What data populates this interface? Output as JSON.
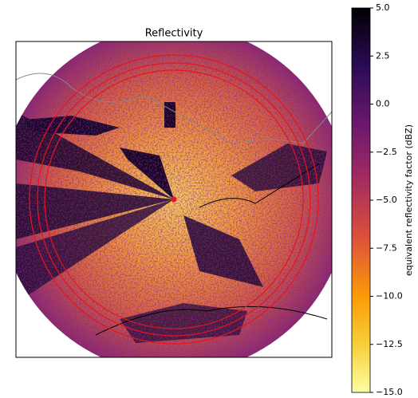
{
  "chart_data": {
    "type": "radar-image",
    "title": "Reflectivity",
    "colorbar_label": "equivalent reflectivity factor (dBZ)",
    "clim": [
      -15,
      5
    ],
    "cticks": [
      {
        "value": 5,
        "label": "5.0"
      },
      {
        "value": 2.5,
        "label": "2.5"
      },
      {
        "value": 0,
        "label": "0.0"
      },
      {
        "value": -2.5,
        "label": "−2.5"
      },
      {
        "value": -5,
        "label": "−5.0"
      },
      {
        "value": -7.5,
        "label": "−7.5"
      },
      {
        "value": -10,
        "label": "−10.0"
      },
      {
        "value": -12.5,
        "label": "−12.5"
      },
      {
        "value": -15,
        "label": "−15.0"
      }
    ]
  }
}
